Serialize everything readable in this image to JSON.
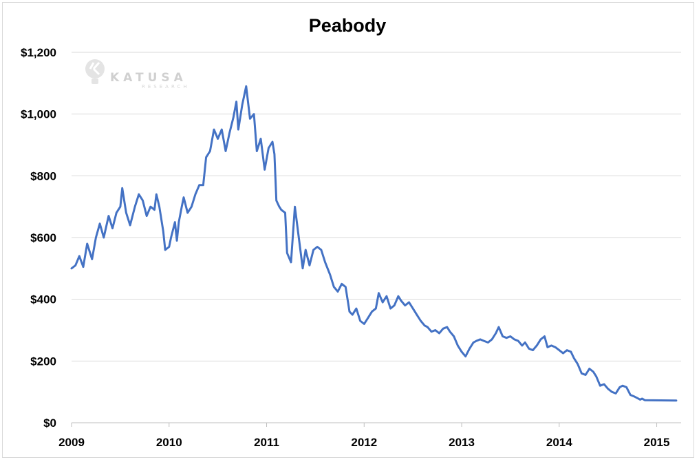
{
  "chart_data": {
    "type": "line",
    "title": "Peabody",
    "xlabel": "",
    "ylabel": "",
    "x_ticks": [
      "2009",
      "2010",
      "2011",
      "2012",
      "2013",
      "2014",
      "2015"
    ],
    "y_ticks": [
      "$0",
      "$200",
      "$400",
      "$600",
      "$800",
      "$1,000",
      "$1,200"
    ],
    "xlim": [
      2009,
      2015.25
    ],
    "ylim": [
      0,
      1200
    ],
    "grid": "horizontal",
    "legend": "none",
    "series": [
      {
        "color": "#4472c4",
        "points": [
          [
            2009.0,
            500
          ],
          [
            2009.04,
            510
          ],
          [
            2009.08,
            540
          ],
          [
            2009.12,
            505
          ],
          [
            2009.16,
            580
          ],
          [
            2009.21,
            530
          ],
          [
            2009.25,
            600
          ],
          [
            2009.29,
            645
          ],
          [
            2009.33,
            600
          ],
          [
            2009.38,
            670
          ],
          [
            2009.42,
            630
          ],
          [
            2009.46,
            680
          ],
          [
            2009.5,
            700
          ],
          [
            2009.52,
            760
          ],
          [
            2009.56,
            680
          ],
          [
            2009.6,
            640
          ],
          [
            2009.65,
            700
          ],
          [
            2009.69,
            740
          ],
          [
            2009.73,
            720
          ],
          [
            2009.77,
            670
          ],
          [
            2009.81,
            700
          ],
          [
            2009.85,
            690
          ],
          [
            2009.87,
            740
          ],
          [
            2009.9,
            700
          ],
          [
            2009.94,
            620
          ],
          [
            2009.96,
            560
          ],
          [
            2010.0,
            570
          ],
          [
            2010.02,
            600
          ],
          [
            2010.06,
            650
          ],
          [
            2010.08,
            590
          ],
          [
            2010.1,
            650
          ],
          [
            2010.13,
            700
          ],
          [
            2010.15,
            730
          ],
          [
            2010.19,
            680
          ],
          [
            2010.23,
            700
          ],
          [
            2010.27,
            740
          ],
          [
            2010.31,
            770
          ],
          [
            2010.35,
            770
          ],
          [
            2010.38,
            860
          ],
          [
            2010.42,
            880
          ],
          [
            2010.46,
            950
          ],
          [
            2010.5,
            920
          ],
          [
            2010.54,
            950
          ],
          [
            2010.58,
            880
          ],
          [
            2010.62,
            940
          ],
          [
            2010.66,
            990
          ],
          [
            2010.69,
            1040
          ],
          [
            2010.71,
            950
          ],
          [
            2010.75,
            1030
          ],
          [
            2010.79,
            1090
          ],
          [
            2010.83,
            985
          ],
          [
            2010.87,
            1000
          ],
          [
            2010.9,
            880
          ],
          [
            2010.94,
            920
          ],
          [
            2010.98,
            820
          ],
          [
            2011.02,
            890
          ],
          [
            2011.06,
            910
          ],
          [
            2011.08,
            870
          ],
          [
            2011.1,
            720
          ],
          [
            2011.13,
            700
          ],
          [
            2011.15,
            690
          ],
          [
            2011.19,
            680
          ],
          [
            2011.21,
            550
          ],
          [
            2011.25,
            520
          ],
          [
            2011.29,
            700
          ],
          [
            2011.33,
            600
          ],
          [
            2011.37,
            500
          ],
          [
            2011.4,
            560
          ],
          [
            2011.44,
            510
          ],
          [
            2011.48,
            560
          ],
          [
            2011.52,
            570
          ],
          [
            2011.56,
            560
          ],
          [
            2011.6,
            520
          ],
          [
            2011.65,
            480
          ],
          [
            2011.69,
            440
          ],
          [
            2011.73,
            425
          ],
          [
            2011.77,
            450
          ],
          [
            2011.81,
            440
          ],
          [
            2011.85,
            360
          ],
          [
            2011.88,
            350
          ],
          [
            2011.92,
            370
          ],
          [
            2011.96,
            330
          ],
          [
            2012.0,
            320
          ],
          [
            2012.04,
            340
          ],
          [
            2012.08,
            360
          ],
          [
            2012.12,
            370
          ],
          [
            2012.15,
            420
          ],
          [
            2012.19,
            390
          ],
          [
            2012.23,
            410
          ],
          [
            2012.27,
            370
          ],
          [
            2012.31,
            380
          ],
          [
            2012.35,
            410
          ],
          [
            2012.38,
            395
          ],
          [
            2012.42,
            380
          ],
          [
            2012.46,
            390
          ],
          [
            2012.5,
            370
          ],
          [
            2012.54,
            350
          ],
          [
            2012.58,
            330
          ],
          [
            2012.62,
            315
          ],
          [
            2012.65,
            310
          ],
          [
            2012.69,
            295
          ],
          [
            2012.73,
            300
          ],
          [
            2012.77,
            290
          ],
          [
            2012.81,
            305
          ],
          [
            2012.85,
            310
          ],
          [
            2012.88,
            295
          ],
          [
            2012.92,
            280
          ],
          [
            2012.96,
            250
          ],
          [
            2013.0,
            230
          ],
          [
            2013.04,
            215
          ],
          [
            2013.08,
            240
          ],
          [
            2013.12,
            260
          ],
          [
            2013.15,
            265
          ],
          [
            2013.19,
            270
          ],
          [
            2013.23,
            265
          ],
          [
            2013.27,
            260
          ],
          [
            2013.31,
            270
          ],
          [
            2013.35,
            290
          ],
          [
            2013.38,
            310
          ],
          [
            2013.42,
            280
          ],
          [
            2013.46,
            275
          ],
          [
            2013.5,
            280
          ],
          [
            2013.54,
            270
          ],
          [
            2013.58,
            265
          ],
          [
            2013.62,
            250
          ],
          [
            2013.65,
            260
          ],
          [
            2013.69,
            240
          ],
          [
            2013.73,
            235
          ],
          [
            2013.77,
            250
          ],
          [
            2013.81,
            270
          ],
          [
            2013.85,
            280
          ],
          [
            2013.88,
            245
          ],
          [
            2013.92,
            250
          ],
          [
            2013.96,
            245
          ],
          [
            2014.0,
            235
          ],
          [
            2014.04,
            225
          ],
          [
            2014.08,
            235
          ],
          [
            2014.12,
            230
          ],
          [
            2014.15,
            210
          ],
          [
            2014.19,
            190
          ],
          [
            2014.23,
            160
          ],
          [
            2014.27,
            155
          ],
          [
            2014.31,
            175
          ],
          [
            2014.35,
            165
          ],
          [
            2014.38,
            150
          ],
          [
            2014.42,
            120
          ],
          [
            2014.46,
            125
          ],
          [
            2014.5,
            110
          ],
          [
            2014.54,
            100
          ],
          [
            2014.58,
            95
          ],
          [
            2014.62,
            115
          ],
          [
            2014.65,
            120
          ],
          [
            2014.69,
            115
          ],
          [
            2014.73,
            90
          ],
          [
            2014.77,
            85
          ],
          [
            2014.8,
            80
          ],
          [
            2014.83,
            75
          ],
          [
            2014.85,
            78
          ],
          [
            2014.88,
            73
          ],
          [
            2015.2,
            72
          ]
        ]
      }
    ]
  },
  "watermark": {
    "brand": "KATUSA",
    "sub": "RESEARCH"
  }
}
